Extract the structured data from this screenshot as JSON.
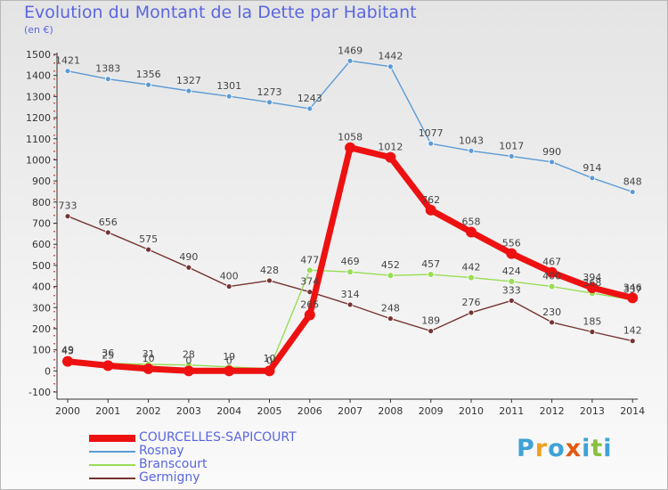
{
  "title": "Evolution du Montant de la Dette par Habitant",
  "subtitle": "(en €)",
  "logo": {
    "text": "Proxiti",
    "letters": [
      "P",
      "r",
      "o",
      "x",
      "i",
      "t",
      "i"
    ],
    "colors": [
      "#3ea2d6",
      "#f0a020",
      "#3ea2d6",
      "#e05a10",
      "#3ea2d6",
      "#88c040",
      "#3ea2d6"
    ]
  },
  "chart_data": {
    "type": "line",
    "title": "Evolution du Montant de la Dette par Habitant",
    "ylabel": "(en €)",
    "xlabel": "",
    "ylim": [
      -100,
      1500
    ],
    "ytick_step": 100,
    "grid": false,
    "legend_position": "bottom-left",
    "x": [
      "2000",
      "2001",
      "2002",
      "2003",
      "2004",
      "2005",
      "2006",
      "2007",
      "2008",
      "2009",
      "2010",
      "2011",
      "2012",
      "2013",
      "2014"
    ],
    "series": [
      {
        "name": "COURCELLES-SAPICOURT",
        "color": "#ee1111",
        "values": [
          45,
          25,
          10,
          0,
          0,
          0,
          265,
          1058,
          1012,
          762,
          658,
          556,
          467,
          394,
          346
        ],
        "labels": [
          "45",
          "25",
          "10",
          "0",
          "0",
          "0",
          "265",
          "1058",
          "1012",
          "762",
          "658",
          "556",
          "467",
          "394",
          "346"
        ]
      },
      {
        "name": "Rosnay",
        "color": "#5b9bd5",
        "values": [
          1421,
          1383,
          1356,
          1327,
          1301,
          1273,
          1243,
          1469,
          1442,
          1077,
          1043,
          1017,
          990,
          914,
          848
        ],
        "labels": [
          "1421",
          "1383",
          "1356",
          "1327",
          "1301",
          "1273",
          "1243",
          "1469",
          "1442",
          "1077",
          "1043",
          "1017",
          "990",
          "914",
          "848"
        ]
      },
      {
        "name": "Branscourt",
        "color": "#99dd55",
        "values": [
          49,
          36,
          31,
          28,
          19,
          10,
          477,
          469,
          452,
          457,
          442,
          424,
          400,
          368,
          337
        ],
        "labels": [
          "49",
          "36",
          "31",
          "28",
          "19",
          "10",
          "477",
          "469",
          "452",
          "457",
          "442",
          "424",
          "400",
          "368",
          "337"
        ]
      },
      {
        "name": "Germigny",
        "color": "#773333",
        "values": [
          733,
          656,
          575,
          490,
          400,
          428,
          374,
          314,
          248,
          189,
          276,
          333,
          230,
          185,
          142
        ],
        "labels": [
          "733",
          "656",
          "575",
          "490",
          "400",
          "428",
          "374",
          "314",
          "248",
          "189",
          "276",
          "333",
          "230",
          "185",
          "142"
        ]
      }
    ]
  }
}
